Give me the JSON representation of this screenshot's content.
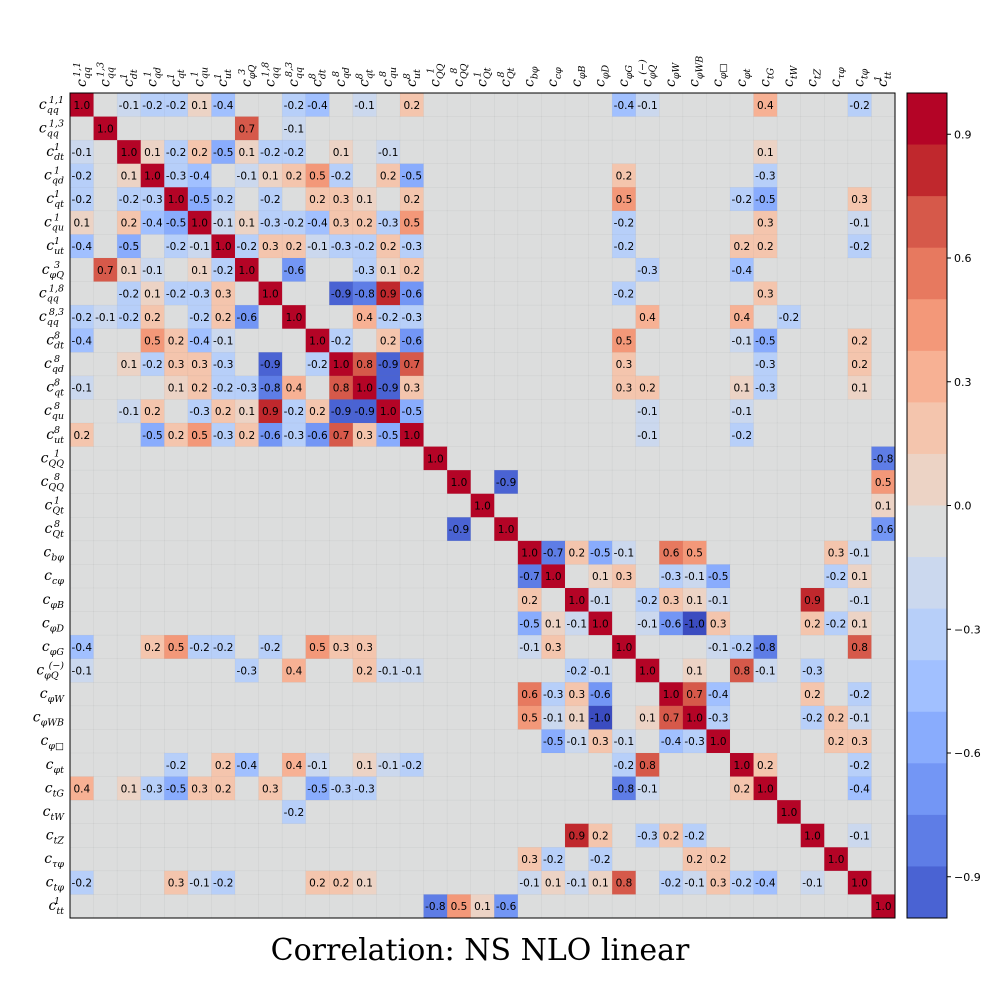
{
  "chart_data": {
    "type": "heatmap",
    "title": "Correlation: NS  NLO linear",
    "labels": [
      "c_qq^1,1",
      "c_qq^1,3",
      "c_dt^1",
      "c_qd^1",
      "c_qt^1",
      "c_qu^1",
      "c_ut^1",
      "c_φQ^3",
      "c_qq^1,8",
      "c_qq^8,3",
      "c_dt^8",
      "c_qd^8",
      "c_qt^8",
      "c_qu^8",
      "c_ut^8",
      "c_QQ^1",
      "c_QQ^8",
      "c_Qt^1",
      "c_Qt^8",
      "c_bφ",
      "c_cφ",
      "c_φB",
      "c_φD",
      "c_φG",
      "c_φQ^(−)",
      "c_φW",
      "c_φWB",
      "c_φ□",
      "c_φt",
      "c_tG",
      "c_tW",
      "c_tZ",
      "c_τφ",
      "c_tφ",
      "c_tt^1"
    ],
    "matrix": [
      [
        1.0,
        null,
        -0.1,
        -0.2,
        -0.2,
        0.1,
        -0.4,
        null,
        null,
        -0.2,
        -0.4,
        null,
        -0.1,
        null,
        0.2,
        null,
        null,
        null,
        null,
        null,
        null,
        null,
        null,
        -0.4,
        -0.1,
        null,
        null,
        null,
        null,
        0.4,
        null,
        null,
        null,
        -0.2,
        null
      ],
      [
        null,
        1.0,
        null,
        null,
        null,
        null,
        null,
        0.7,
        null,
        -0.1,
        null,
        null,
        null,
        null,
        null,
        null,
        null,
        null,
        null,
        null,
        null,
        null,
        null,
        null,
        null,
        null,
        null,
        null,
        null,
        null,
        null,
        null,
        null,
        null,
        null
      ],
      [
        -0.1,
        null,
        1.0,
        0.1,
        -0.2,
        0.2,
        -0.5,
        0.1,
        -0.2,
        -0.2,
        null,
        0.1,
        null,
        -0.1,
        null,
        null,
        null,
        null,
        null,
        null,
        null,
        null,
        null,
        null,
        null,
        null,
        null,
        null,
        null,
        0.1,
        null,
        null,
        null,
        null,
        null
      ],
      [
        -0.2,
        null,
        0.1,
        1.0,
        -0.3,
        -0.4,
        null,
        -0.1,
        0.1,
        0.2,
        0.5,
        -0.2,
        null,
        0.2,
        -0.5,
        null,
        null,
        null,
        null,
        null,
        null,
        null,
        null,
        0.2,
        null,
        null,
        null,
        null,
        null,
        -0.3,
        null,
        null,
        null,
        null,
        null
      ],
      [
        -0.2,
        null,
        -0.2,
        -0.3,
        1.0,
        -0.5,
        -0.2,
        null,
        -0.2,
        null,
        0.2,
        0.3,
        0.1,
        null,
        0.2,
        null,
        null,
        null,
        null,
        null,
        null,
        null,
        null,
        0.5,
        null,
        null,
        null,
        null,
        -0.2,
        -0.5,
        null,
        null,
        null,
        0.3,
        null
      ],
      [
        0.1,
        null,
        0.2,
        -0.4,
        -0.5,
        1.0,
        -0.1,
        0.1,
        -0.3,
        -0.2,
        -0.4,
        0.3,
        0.2,
        -0.3,
        0.5,
        null,
        null,
        null,
        null,
        null,
        null,
        null,
        null,
        -0.2,
        null,
        null,
        null,
        null,
        null,
        0.3,
        null,
        null,
        null,
        -0.1,
        null
      ],
      [
        -0.4,
        null,
        -0.5,
        null,
        -0.2,
        -0.1,
        1.0,
        -0.2,
        0.3,
        0.2,
        -0.1,
        -0.3,
        -0.2,
        0.2,
        -0.3,
        null,
        null,
        null,
        null,
        null,
        null,
        null,
        null,
        -0.2,
        null,
        null,
        null,
        null,
        0.2,
        0.2,
        null,
        null,
        null,
        -0.2,
        null
      ],
      [
        null,
        0.7,
        0.1,
        -0.1,
        null,
        0.1,
        -0.2,
        1.0,
        null,
        -0.6,
        null,
        null,
        -0.3,
        0.1,
        0.2,
        null,
        null,
        null,
        null,
        null,
        null,
        null,
        null,
        null,
        -0.3,
        null,
        null,
        null,
        -0.4,
        null,
        null,
        null,
        null,
        null,
        null
      ],
      [
        null,
        null,
        -0.2,
        0.1,
        -0.2,
        -0.3,
        0.3,
        null,
        1.0,
        null,
        null,
        -0.9,
        -0.8,
        0.9,
        -0.6,
        null,
        null,
        null,
        null,
        null,
        null,
        null,
        null,
        -0.2,
        null,
        null,
        null,
        null,
        null,
        0.3,
        null,
        null,
        null,
        null,
        null
      ],
      [
        -0.2,
        -0.1,
        -0.2,
        0.2,
        null,
        -0.2,
        0.2,
        -0.6,
        null,
        1.0,
        null,
        null,
        0.4,
        -0.2,
        -0.3,
        null,
        null,
        null,
        null,
        null,
        null,
        null,
        null,
        null,
        0.4,
        null,
        null,
        null,
        0.4,
        null,
        -0.2,
        null,
        null,
        null,
        null
      ],
      [
        -0.4,
        null,
        null,
        0.5,
        0.2,
        -0.4,
        -0.1,
        null,
        null,
        null,
        1.0,
        -0.2,
        null,
        0.2,
        -0.6,
        null,
        null,
        null,
        null,
        null,
        null,
        null,
        null,
        0.5,
        null,
        null,
        null,
        null,
        -0.1,
        -0.5,
        null,
        null,
        null,
        0.2,
        null
      ],
      [
        null,
        null,
        0.1,
        -0.2,
        0.3,
        0.3,
        -0.3,
        null,
        -0.9,
        null,
        -0.2,
        1.0,
        0.8,
        -0.9,
        0.7,
        null,
        null,
        null,
        null,
        null,
        null,
        null,
        null,
        0.3,
        null,
        null,
        null,
        null,
        null,
        -0.3,
        null,
        null,
        null,
        0.2,
        null
      ],
      [
        -0.1,
        null,
        null,
        null,
        0.1,
        0.2,
        -0.2,
        -0.3,
        -0.8,
        0.4,
        null,
        0.8,
        1.0,
        -0.9,
        0.3,
        null,
        null,
        null,
        null,
        null,
        null,
        null,
        null,
        0.3,
        0.2,
        null,
        null,
        null,
        0.1,
        -0.3,
        null,
        null,
        null,
        0.1,
        null
      ],
      [
        null,
        null,
        -0.1,
        0.2,
        null,
        -0.3,
        0.2,
        0.1,
        0.9,
        -0.2,
        0.2,
        -0.9,
        -0.9,
        1.0,
        -0.5,
        null,
        null,
        null,
        null,
        null,
        null,
        null,
        null,
        null,
        -0.1,
        null,
        null,
        null,
        -0.1,
        null,
        null,
        null,
        null,
        null,
        null
      ],
      [
        0.2,
        null,
        null,
        -0.5,
        0.2,
        0.5,
        -0.3,
        0.2,
        -0.6,
        -0.3,
        -0.6,
        0.7,
        0.3,
        -0.5,
        1.0,
        null,
        null,
        null,
        null,
        null,
        null,
        null,
        null,
        null,
        -0.1,
        null,
        null,
        null,
        -0.2,
        null,
        null,
        null,
        null,
        null,
        null
      ],
      [
        null,
        null,
        null,
        null,
        null,
        null,
        null,
        null,
        null,
        null,
        null,
        null,
        null,
        null,
        null,
        1.0,
        null,
        null,
        null,
        null,
        null,
        null,
        null,
        null,
        null,
        null,
        null,
        null,
        null,
        null,
        null,
        null,
        null,
        null,
        -0.8
      ],
      [
        null,
        null,
        null,
        null,
        null,
        null,
        null,
        null,
        null,
        null,
        null,
        null,
        null,
        null,
        null,
        null,
        1.0,
        null,
        -0.9,
        null,
        null,
        null,
        null,
        null,
        null,
        null,
        null,
        null,
        null,
        null,
        null,
        null,
        null,
        null,
        0.5
      ],
      [
        null,
        null,
        null,
        null,
        null,
        null,
        null,
        null,
        null,
        null,
        null,
        null,
        null,
        null,
        null,
        null,
        null,
        1.0,
        null,
        null,
        null,
        null,
        null,
        null,
        null,
        null,
        null,
        null,
        null,
        null,
        null,
        null,
        null,
        null,
        0.1
      ],
      [
        null,
        null,
        null,
        null,
        null,
        null,
        null,
        null,
        null,
        null,
        null,
        null,
        null,
        null,
        null,
        null,
        -0.9,
        null,
        1.0,
        null,
        null,
        null,
        null,
        null,
        null,
        null,
        null,
        null,
        null,
        null,
        null,
        null,
        null,
        null,
        -0.6
      ],
      [
        null,
        null,
        null,
        null,
        null,
        null,
        null,
        null,
        null,
        null,
        null,
        null,
        null,
        null,
        null,
        null,
        null,
        null,
        null,
        1.0,
        -0.7,
        0.2,
        -0.5,
        -0.1,
        null,
        0.6,
        0.5,
        null,
        null,
        null,
        null,
        null,
        0.3,
        -0.1,
        null
      ],
      [
        null,
        null,
        null,
        null,
        null,
        null,
        null,
        null,
        null,
        null,
        null,
        null,
        null,
        null,
        null,
        null,
        null,
        null,
        null,
        -0.7,
        1.0,
        null,
        0.1,
        0.3,
        null,
        -0.3,
        -0.1,
        -0.5,
        null,
        null,
        null,
        null,
        -0.2,
        0.1,
        null
      ],
      [
        null,
        null,
        null,
        null,
        null,
        null,
        null,
        null,
        null,
        null,
        null,
        null,
        null,
        null,
        null,
        null,
        null,
        null,
        null,
        0.2,
        null,
        1.0,
        -0.1,
        null,
        -0.2,
        0.3,
        0.1,
        -0.1,
        null,
        null,
        null,
        0.9,
        null,
        -0.1,
        null
      ],
      [
        null,
        null,
        null,
        null,
        null,
        null,
        null,
        null,
        null,
        null,
        null,
        null,
        null,
        null,
        null,
        null,
        null,
        null,
        null,
        -0.5,
        0.1,
        -0.1,
        1.0,
        null,
        -0.1,
        -0.6,
        -1.0,
        0.3,
        null,
        null,
        null,
        0.2,
        -0.2,
        0.1,
        null
      ],
      [
        -0.4,
        null,
        null,
        0.2,
        0.5,
        -0.2,
        -0.2,
        null,
        -0.2,
        null,
        0.5,
        0.3,
        0.3,
        null,
        null,
        null,
        null,
        null,
        null,
        -0.1,
        0.3,
        null,
        null,
        1.0,
        null,
        null,
        null,
        -0.1,
        -0.2,
        -0.8,
        null,
        null,
        null,
        0.8,
        null
      ],
      [
        -0.1,
        null,
        null,
        null,
        null,
        null,
        null,
        -0.3,
        null,
        0.4,
        null,
        null,
        0.2,
        -0.1,
        -0.1,
        null,
        null,
        null,
        null,
        null,
        null,
        -0.2,
        -0.1,
        null,
        1.0,
        null,
        0.1,
        null,
        0.8,
        -0.1,
        null,
        -0.3,
        null,
        null,
        null
      ],
      [
        null,
        null,
        null,
        null,
        null,
        null,
        null,
        null,
        null,
        null,
        null,
        null,
        null,
        null,
        null,
        null,
        null,
        null,
        null,
        0.6,
        -0.3,
        0.3,
        -0.6,
        null,
        null,
        1.0,
        0.7,
        -0.4,
        null,
        null,
        null,
        0.2,
        null,
        -0.2,
        null
      ],
      [
        null,
        null,
        null,
        null,
        null,
        null,
        null,
        null,
        null,
        null,
        null,
        null,
        null,
        null,
        null,
        null,
        null,
        null,
        null,
        0.5,
        -0.1,
        0.1,
        -1.0,
        null,
        0.1,
        0.7,
        1.0,
        -0.3,
        null,
        null,
        null,
        -0.2,
        0.2,
        -0.1,
        null
      ],
      [
        null,
        null,
        null,
        null,
        null,
        null,
        null,
        null,
        null,
        null,
        null,
        null,
        null,
        null,
        null,
        null,
        null,
        null,
        null,
        null,
        -0.5,
        -0.1,
        0.3,
        -0.1,
        null,
        -0.4,
        -0.3,
        1.0,
        null,
        null,
        null,
        null,
        0.2,
        0.3,
        null
      ],
      [
        null,
        null,
        null,
        null,
        -0.2,
        null,
        0.2,
        -0.4,
        null,
        0.4,
        -0.1,
        null,
        0.1,
        -0.1,
        -0.2,
        null,
        null,
        null,
        null,
        null,
        null,
        null,
        null,
        -0.2,
        0.8,
        null,
        null,
        null,
        1.0,
        0.2,
        null,
        null,
        null,
        -0.2,
        null
      ],
      [
        0.4,
        null,
        0.1,
        -0.3,
        -0.5,
        0.3,
        0.2,
        null,
        0.3,
        null,
        -0.5,
        -0.3,
        -0.3,
        null,
        null,
        null,
        null,
        null,
        null,
        null,
        null,
        null,
        null,
        -0.8,
        -0.1,
        null,
        null,
        null,
        0.2,
        1.0,
        null,
        null,
        null,
        -0.4,
        null
      ],
      [
        null,
        null,
        null,
        null,
        null,
        null,
        null,
        null,
        null,
        -0.2,
        null,
        null,
        null,
        null,
        null,
        null,
        null,
        null,
        null,
        null,
        null,
        null,
        null,
        null,
        null,
        null,
        null,
        null,
        null,
        null,
        1.0,
        null,
        null,
        null,
        null
      ],
      [
        null,
        null,
        null,
        null,
        null,
        null,
        null,
        null,
        null,
        null,
        null,
        null,
        null,
        null,
        null,
        null,
        null,
        null,
        null,
        null,
        null,
        0.9,
        0.2,
        null,
        -0.3,
        0.2,
        -0.2,
        null,
        null,
        null,
        null,
        1.0,
        null,
        -0.1,
        null
      ],
      [
        null,
        null,
        null,
        null,
        null,
        null,
        null,
        null,
        null,
        null,
        null,
        null,
        null,
        null,
        null,
        null,
        null,
        null,
        null,
        0.3,
        -0.2,
        null,
        -0.2,
        null,
        null,
        null,
        0.2,
        0.2,
        null,
        null,
        null,
        null,
        1.0,
        null,
        null
      ],
      [
        -0.2,
        null,
        null,
        null,
        0.3,
        -0.1,
        -0.2,
        null,
        null,
        null,
        0.2,
        0.2,
        0.1,
        null,
        null,
        null,
        null,
        null,
        null,
        -0.1,
        0.1,
        -0.1,
        0.1,
        0.8,
        null,
        -0.2,
        -0.1,
        0.3,
        -0.2,
        -0.4,
        null,
        -0.1,
        null,
        1.0,
        null
      ],
      [
        null,
        null,
        null,
        null,
        null,
        null,
        null,
        null,
        null,
        null,
        null,
        null,
        null,
        null,
        null,
        -0.8,
        0.5,
        0.1,
        -0.6,
        null,
        null,
        null,
        null,
        null,
        null,
        null,
        null,
        null,
        null,
        null,
        null,
        null,
        null,
        null,
        1.0
      ]
    ],
    "colorbar": {
      "range": [
        -1,
        1
      ],
      "ticks": [
        "0.9",
        "0.6",
        "0.3",
        "0.0",
        "−0.3",
        "−0.6",
        "−0.9"
      ],
      "tick_values": [
        0.9,
        0.6,
        0.3,
        0.0,
        -0.3,
        -0.6,
        -0.9
      ],
      "levels": 16
    },
    "colormap": [
      "#3b4cc0",
      "#4a63d3",
      "#5e7de6",
      "#7396f5",
      "#89acfd",
      "#a1c0ff",
      "#b7cff9",
      "#cbd8ee",
      "#dcdddd",
      "#ecd3c5",
      "#f4c5ad",
      "#f7b194",
      "#f39879",
      "#e7795f",
      "#d6594a",
      "#c0282d",
      "#b40426"
    ]
  }
}
